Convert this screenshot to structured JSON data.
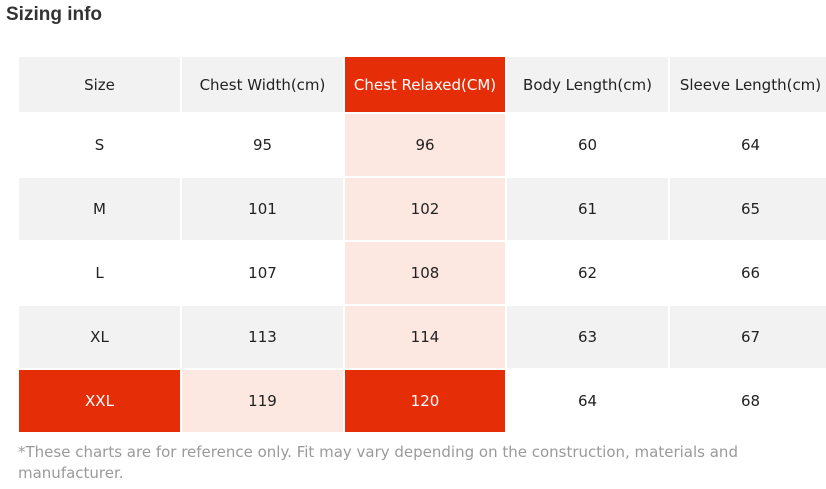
{
  "title": "Sizing info",
  "table": {
    "columns": [
      "Size",
      "Chest Width(cm)",
      "Chest Relaxed(CM)",
      "Body Length(cm)",
      "Sleeve Length(cm)"
    ],
    "rows": [
      [
        "S",
        "95",
        "96",
        "60",
        "64"
      ],
      [
        "M",
        "101",
        "102",
        "61",
        "65"
      ],
      [
        "L",
        "107",
        "108",
        "62",
        "66"
      ],
      [
        "XL",
        "113",
        "114",
        "63",
        "67"
      ],
      [
        "XXL",
        "119",
        "120",
        "64",
        "68"
      ]
    ]
  },
  "highlight_colors": {
    "accent_red": "#e52d08",
    "light_pink": "#fde8e1",
    "row_gray": "#f2f2f2"
  },
  "note": "*These charts are for reference only. Fit may vary depending on the construction, materials and manufacturer."
}
